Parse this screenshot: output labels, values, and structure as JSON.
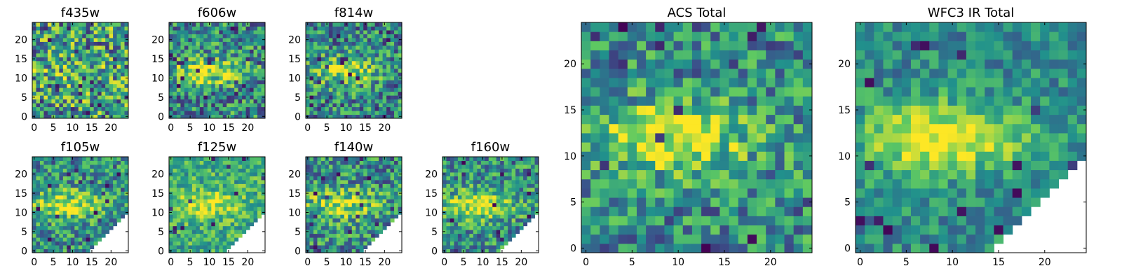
{
  "chart_data": [
    {
      "type": "heatmap",
      "title": "f435w",
      "size": 25,
      "xticks": [
        "0",
        "5",
        "10",
        "15",
        "20"
      ],
      "yticks": [
        "0",
        "5",
        "10",
        "15",
        "20"
      ],
      "cmap": [
        "#440154",
        "#3b528b",
        "#21918c",
        "#5ec962",
        "#fde725"
      ],
      "base": 0.55,
      "noise": 0.42,
      "blob": 0.08,
      "seed": 11,
      "white_corner": false
    },
    {
      "type": "heatmap",
      "title": "f606w",
      "size": 25,
      "xticks": [
        "0",
        "5",
        "10",
        "15",
        "20"
      ],
      "yticks": [
        "0",
        "5",
        "10",
        "15",
        "20"
      ],
      "cmap": [
        "#440154",
        "#3b528b",
        "#21918c",
        "#5ec962",
        "#fde725"
      ],
      "base": 0.48,
      "noise": 0.34,
      "blob": 0.45,
      "seed": 23,
      "white_corner": false
    },
    {
      "type": "heatmap",
      "title": "f814w",
      "size": 25,
      "xticks": [
        "0",
        "5",
        "10",
        "15",
        "20"
      ],
      "yticks": [
        "0",
        "5",
        "10",
        "15",
        "20"
      ],
      "cmap": [
        "#440154",
        "#3b528b",
        "#21918c",
        "#5ec962",
        "#fde725"
      ],
      "base": 0.46,
      "noise": 0.34,
      "blob": 0.42,
      "seed": 37,
      "white_corner": false
    },
    {
      "type": "heatmap",
      "title": "f105w",
      "size": 25,
      "xticks": [
        "0",
        "5",
        "10",
        "15",
        "20"
      ],
      "yticks": [
        "0",
        "5",
        "10",
        "15",
        "20"
      ],
      "cmap": [
        "#440154",
        "#3b528b",
        "#21918c",
        "#5ec962",
        "#fde725"
      ],
      "base": 0.5,
      "noise": 0.3,
      "blob": 0.42,
      "seed": 41,
      "white_corner": true
    },
    {
      "type": "heatmap",
      "title": "f125w",
      "size": 25,
      "xticks": [
        "0",
        "5",
        "10",
        "15",
        "20"
      ],
      "yticks": [
        "0",
        "5",
        "10",
        "15",
        "20"
      ],
      "cmap": [
        "#440154",
        "#3b528b",
        "#21918c",
        "#5ec962",
        "#fde725"
      ],
      "base": 0.62,
      "noise": 0.24,
      "blob": 0.32,
      "seed": 53,
      "white_corner": true
    },
    {
      "type": "heatmap",
      "title": "f140w",
      "size": 25,
      "xticks": [
        "0",
        "5",
        "10",
        "15",
        "20"
      ],
      "yticks": [
        "0",
        "5",
        "10",
        "15",
        "20"
      ],
      "cmap": [
        "#440154",
        "#3b528b",
        "#21918c",
        "#5ec962",
        "#fde725"
      ],
      "base": 0.5,
      "noise": 0.32,
      "blob": 0.4,
      "seed": 67,
      "white_corner": true
    },
    {
      "type": "heatmap",
      "title": "f160w",
      "size": 25,
      "xticks": [
        "0",
        "5",
        "10",
        "15",
        "20"
      ],
      "yticks": [
        "0",
        "5",
        "10",
        "15",
        "20"
      ],
      "cmap": [
        "#440154",
        "#3b528b",
        "#21918c",
        "#5ec962",
        "#fde725"
      ],
      "base": 0.5,
      "noise": 0.3,
      "blob": 0.45,
      "seed": 79,
      "white_corner": true
    },
    {
      "type": "heatmap",
      "title": "ACS Total",
      "size": 25,
      "xticks": [
        "0",
        "5",
        "10",
        "15",
        "20"
      ],
      "yticks": [
        "0",
        "5",
        "10",
        "15",
        "20"
      ],
      "cmap": [
        "#440154",
        "#3b528b",
        "#21918c",
        "#5ec962",
        "#fde725"
      ],
      "base": 0.48,
      "noise": 0.3,
      "blob": 0.5,
      "seed": 97,
      "white_corner": false
    },
    {
      "type": "heatmap",
      "title": "WFC3 IR Total",
      "size": 25,
      "xticks": [
        "0",
        "5",
        "10",
        "15",
        "20"
      ],
      "yticks": [
        "0",
        "5",
        "10",
        "15",
        "20"
      ],
      "cmap": [
        "#440154",
        "#3b528b",
        "#21918c",
        "#5ec962",
        "#fde725"
      ],
      "base": 0.48,
      "noise": 0.2,
      "blob": 0.55,
      "seed": 113,
      "white_corner": true
    }
  ]
}
